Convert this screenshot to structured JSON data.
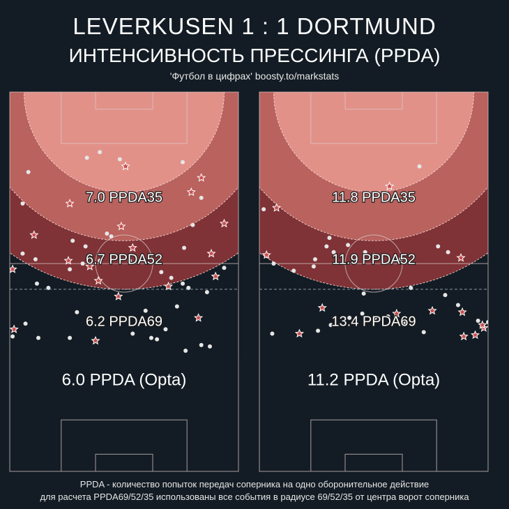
{
  "header": {
    "title": "LEVERKUSEN  1 : 1  DORTMUND",
    "subtitle": "ИНТЕНСИВНОСТЬ ПРЕССИНГА (PPDA)",
    "credit": "'Футбол в цифрах' boosty.to/markstats"
  },
  "footer": {
    "line1": "PPDA - количество попыток передач соперника на одно оборонительное действие",
    "line2": "для расчета PPDA69/52/35 использованы все события в радиусе 69/52/35 от центра ворот соперника"
  },
  "colors": {
    "background": "#131c24",
    "zone35": "#e29189",
    "zone52": "#b9625e",
    "zone69": "#7f3337",
    "star": "#c84a4a",
    "dot": "#e6e6e6"
  },
  "chart_data": [
    {
      "type": "scatter",
      "team": "LEVERKUSEN",
      "zones": [
        {
          "radius": 35,
          "label": "7.0 PPDA35"
        },
        {
          "radius": 52,
          "label": "6.7 PPDA52"
        },
        {
          "radius": 69,
          "label": "6.2 PPDA69"
        }
      ],
      "overall_label": "6.0 PPDA (Opta)",
      "defensive_actions": [
        [
          40.5,
          94.0
        ],
        [
          67.0,
          90.0
        ],
        [
          21.0,
          81.0
        ],
        [
          8.5,
          70.0
        ],
        [
          1.0,
          58.0
        ],
        [
          39.0,
          73.0
        ],
        [
          43.0,
          65.5
        ],
        [
          63.5,
          85.0
        ],
        [
          28.0,
          59.0
        ],
        [
          20.5,
          61.0
        ],
        [
          55.5,
          52.0
        ],
        [
          72.0,
          55.5
        ],
        [
          70.5,
          63.5
        ],
        [
          75.0,
          74.0
        ],
        [
          1.5,
          37.0
        ],
        [
          31.0,
          54.0
        ],
        [
          38.0,
          48.5
        ],
        [
          30.0,
          33.0
        ],
        [
          66.0,
          41.0
        ]
      ],
      "other_events": [
        [
          31.5,
          99.0
        ],
        [
          27.0,
          97.0
        ],
        [
          38.5,
          96.5
        ],
        [
          60.5,
          95.5
        ],
        [
          6.5,
          92.0
        ],
        [
          67.0,
          83.0
        ],
        [
          4.5,
          81.0
        ],
        [
          34.0,
          70.5
        ],
        [
          64.0,
          73.5
        ],
        [
          35.5,
          69.5
        ],
        [
          22.0,
          68.0
        ],
        [
          26.5,
          66.0
        ],
        [
          9.0,
          61.5
        ],
        [
          4.5,
          63.5
        ],
        [
          21.0,
          58.0
        ],
        [
          25.5,
          60.0
        ],
        [
          31.5,
          61.0
        ],
        [
          42.0,
          61.0
        ],
        [
          53.0,
          57.0
        ],
        [
          56.5,
          55.0
        ],
        [
          60.5,
          53.0
        ],
        [
          61.0,
          65.5
        ],
        [
          69.0,
          50.0
        ],
        [
          75.0,
          58.5
        ],
        [
          62.5,
          51.5
        ],
        [
          58.5,
          45.0
        ],
        [
          9.5,
          53.0
        ],
        [
          13.5,
          51.5
        ],
        [
          70.0,
          31.0
        ],
        [
          61.5,
          29.5
        ],
        [
          67.0,
          31.5
        ],
        [
          51.5,
          33.5
        ],
        [
          49.5,
          34.0
        ],
        [
          21.0,
          34.0
        ],
        [
          10.0,
          34.0
        ],
        [
          5.5,
          39.0
        ],
        [
          1.0,
          34.5
        ],
        [
          47.5,
          43.5
        ],
        [
          43.0,
          35.5
        ],
        [
          54.5,
          37.0
        ],
        [
          23.5,
          43.0
        ]
      ]
    },
    {
      "type": "scatter",
      "team": "DORTMUND",
      "zones": [
        {
          "radius": 35,
          "label": "11.8 PPDA35"
        },
        {
          "radius": 52,
          "label": "11.9 PPDA52"
        },
        {
          "radius": 69,
          "label": "13.4 PPDA69"
        }
      ],
      "overall_label": "11.2 PPDA (Opta)",
      "defensive_actions": [
        [
          45.5,
          87.0
        ],
        [
          6.0,
          79.5
        ],
        [
          70.5,
          62.0
        ],
        [
          2.5,
          63.0
        ],
        [
          22.0,
          44.5
        ],
        [
          48.0,
          42.5
        ],
        [
          60.5,
          43.5
        ],
        [
          71.0,
          43.0
        ],
        [
          78.5,
          37.5
        ],
        [
          14.0,
          35.5
        ],
        [
          75.5,
          35.0
        ],
        [
          78.0,
          38.5
        ],
        [
          71.5,
          34.5
        ]
      ],
      "other_events": [
        [
          56.0,
          94.0
        ],
        [
          1.5,
          79.0
        ],
        [
          24.5,
          69.0
        ],
        [
          23.5,
          66.0
        ],
        [
          26.0,
          64.0
        ],
        [
          62.5,
          66.0
        ],
        [
          66.0,
          64.0
        ],
        [
          5.0,
          60.0
        ],
        [
          19.5,
          61.5
        ],
        [
          31.0,
          66.5
        ],
        [
          37.0,
          64.0
        ],
        [
          40.0,
          63.0
        ],
        [
          49.5,
          61.5
        ],
        [
          12.0,
          57.5
        ],
        [
          19.0,
          59.0
        ],
        [
          36.5,
          49.5
        ],
        [
          53.0,
          51.5
        ],
        [
          65.0,
          49.0
        ],
        [
          69.5,
          45.5
        ],
        [
          76.5,
          40.0
        ],
        [
          80.0,
          39.5
        ],
        [
          20.5,
          36.5
        ],
        [
          25.0,
          38.5
        ],
        [
          31.5,
          41.0
        ],
        [
          36.0,
          42.5
        ],
        [
          45.0,
          41.5
        ],
        [
          51.0,
          39.0
        ],
        [
          57.5,
          36.0
        ],
        [
          40.5,
          41.0
        ],
        [
          4.5,
          35.5
        ]
      ]
    }
  ]
}
